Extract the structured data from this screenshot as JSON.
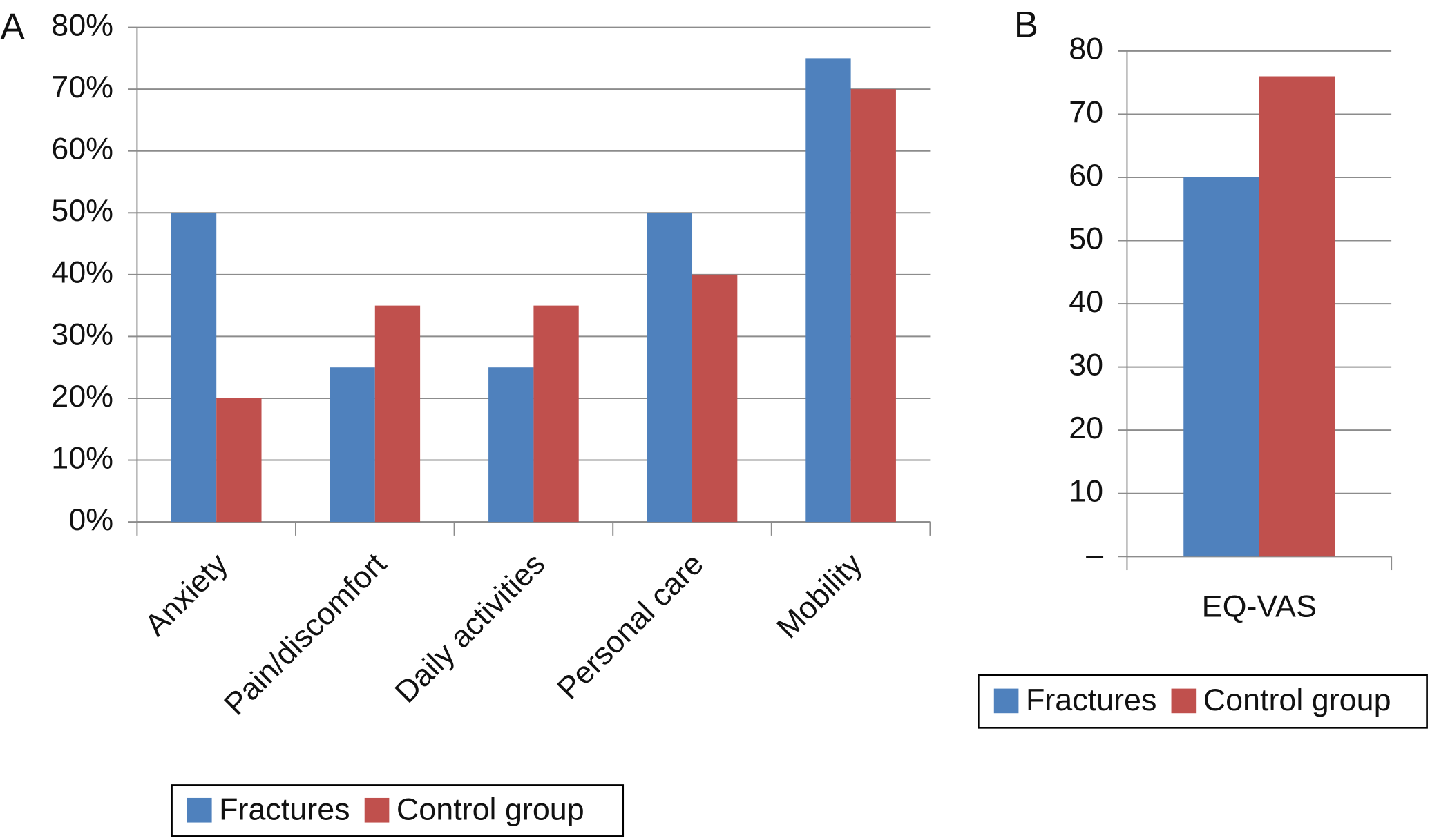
{
  "chart_data": [
    {
      "type": "bar",
      "panel_label": "A",
      "categories": [
        "Anxiety",
        "Pain/discomfort",
        "Daily activities",
        "Personal care",
        "Mobility"
      ],
      "series": [
        {
          "name": "Fractures",
          "color": "#4f81bd",
          "values": [
            50,
            25,
            25,
            50,
            75
          ]
        },
        {
          "name": "Control group",
          "color": "#c0504d",
          "values": [
            20,
            35,
            35,
            40,
            70
          ]
        }
      ],
      "ylim": [
        0,
        80
      ],
      "yticks": [
        {
          "value": 0,
          "label": "0%"
        },
        {
          "value": 10,
          "label": "10%"
        },
        {
          "value": 20,
          "label": "20%"
        },
        {
          "value": 30,
          "label": "30%"
        },
        {
          "value": 40,
          "label": "40%"
        },
        {
          "value": 50,
          "label": "50%"
        },
        {
          "value": 60,
          "label": "60%"
        },
        {
          "value": 70,
          "label": "70%"
        },
        {
          "value": 80,
          "label": "80%"
        }
      ],
      "grid": true
    },
    {
      "type": "bar",
      "panel_label": "B",
      "categories": [
        "EQ-VAS"
      ],
      "series": [
        {
          "name": "Fractures",
          "color": "#4f81bd",
          "values": [
            60
          ]
        },
        {
          "name": "Control group",
          "color": "#c0504d",
          "values": [
            76
          ]
        }
      ],
      "ylim": [
        0,
        80
      ],
      "yticks": [
        {
          "value": 0,
          "label": "–"
        },
        10,
        20,
        30,
        40,
        50,
        60,
        70,
        80
      ],
      "grid": true
    }
  ]
}
